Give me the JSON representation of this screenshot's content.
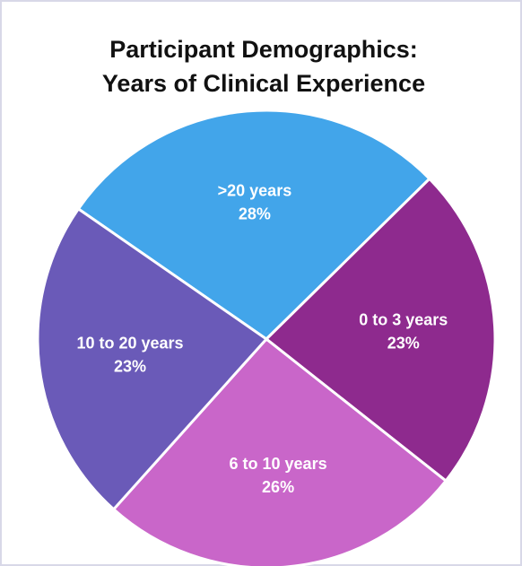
{
  "chart_data": {
    "type": "pie",
    "title": [
      "Participant Demographics:",
      "Years of Clinical Experience"
    ],
    "categories": [
      ">20 years",
      "0 to 3 years",
      "6 to 10 years",
      "10 to 20 years"
    ],
    "values": [
      28,
      23,
      26,
      23
    ],
    "value_labels": [
      "28%",
      "23%",
      "26%",
      "23%"
    ],
    "colors": [
      "#42a5ea",
      "#8e2a8e",
      "#c966c9",
      "#6a5ab8"
    ]
  }
}
